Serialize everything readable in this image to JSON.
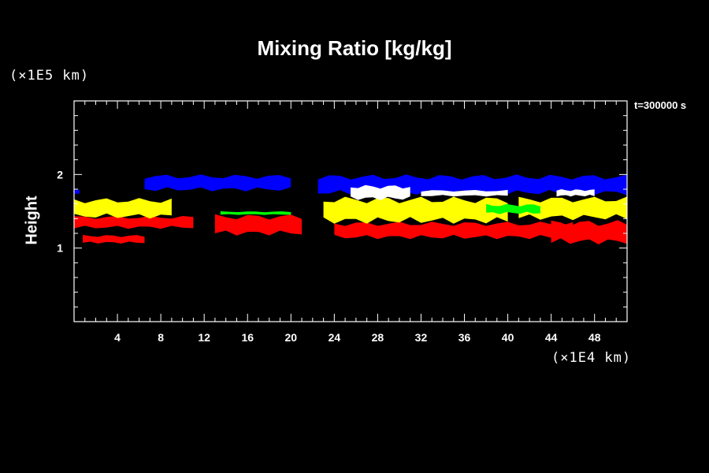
{
  "chart_data": {
    "type": "heatmap",
    "title": "Mixing Ratio [kg/kg]",
    "ylabel": "Height",
    "x_unit": "(×1E4 km)",
    "y_unit": "(×1E5 km)",
    "time_label": "t=300000 s",
    "xlim": [
      0,
      51
    ],
    "ylim": [
      0,
      3
    ],
    "x_ticks": [
      "4",
      "8",
      "12",
      "16",
      "20",
      "24",
      "28",
      "32",
      "36",
      "40",
      "44",
      "48"
    ],
    "y_ticks": [
      "1",
      "2"
    ],
    "colors": {
      "red": "#ff0000",
      "yellow": "#ffff00",
      "green": "#00ff00",
      "blue": "#0000ff",
      "white": "#ffffff",
      "background": "#000000"
    },
    "layers": [
      {
        "color": "red",
        "regions": [
          {
            "x": [
              0,
              11
            ],
            "y": [
              1.26,
              1.44
            ]
          },
          {
            "x": [
              0.8,
              6.5
            ],
            "y": [
              1.06,
              1.18
            ]
          },
          {
            "x": [
              13,
              21
            ],
            "y": [
              1.17,
              1.46
            ]
          },
          {
            "x": [
              24,
              46
            ],
            "y": [
              1.12,
              1.36
            ]
          },
          {
            "x": [
              44,
              51
            ],
            "y": [
              1.05,
              1.38
            ]
          }
        ]
      },
      {
        "color": "yellow",
        "regions": [
          {
            "x": [
              0,
              9
            ],
            "y": [
              1.4,
              1.68
            ]
          },
          {
            "x": [
              23,
              40
            ],
            "y": [
              1.33,
              1.7
            ]
          },
          {
            "x": [
              41,
              51
            ],
            "y": [
              1.38,
              1.7
            ]
          }
        ]
      },
      {
        "color": "green",
        "regions": [
          {
            "x": [
              13.5,
              20
            ],
            "y": [
              1.45,
              1.5
            ]
          },
          {
            "x": [
              38,
              43
            ],
            "y": [
              1.46,
              1.6
            ]
          }
        ]
      },
      {
        "color": "blue",
        "regions": [
          {
            "x": [
              6.5,
              20
            ],
            "y": [
              1.77,
              2.0
            ]
          },
          {
            "x": [
              22.5,
              51
            ],
            "y": [
              1.72,
              2.0
            ]
          },
          {
            "x": [
              0,
              0.5
            ],
            "y": [
              1.73,
              1.8
            ]
          }
        ]
      },
      {
        "color": "white",
        "regions": [
          {
            "x": [
              25.5,
              31
            ],
            "y": [
              1.65,
              1.86
            ]
          },
          {
            "x": [
              32,
              40
            ],
            "y": [
              1.7,
              1.79
            ]
          },
          {
            "x": [
              44.5,
              48
            ],
            "y": [
              1.7,
              1.8
            ]
          }
        ]
      }
    ]
  }
}
